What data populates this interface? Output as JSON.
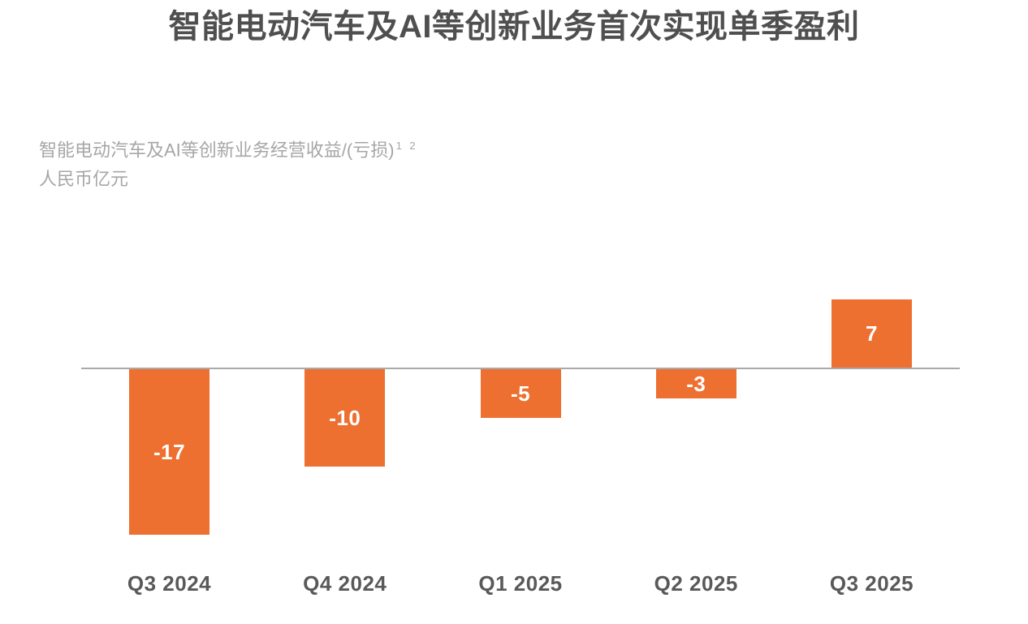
{
  "title": "智能电动汽车及AI等创新业务首次实现单季盈利",
  "subtitle": {
    "line1": "智能电动汽车及AI等创新业务经营收益/(亏损)",
    "superscript": "1 2",
    "line2": "人民币亿元"
  },
  "colors": {
    "bar": "#ed7031",
    "bar_label": "#ffffff",
    "axis_line": "#a9a9a9",
    "title_text": "#4f4f4f",
    "subtitle_text": "#a6a6a6",
    "x_label_text": "#595959",
    "background": "#ffffff"
  },
  "chart_data": {
    "type": "bar",
    "categories": [
      "Q3 2024",
      "Q4 2024",
      "Q1 2025",
      "Q2 2025",
      "Q3 2025"
    ],
    "values": [
      -17,
      -10,
      -5,
      -3,
      7
    ],
    "data_labels": [
      "-17",
      "-10",
      "-5",
      "-3",
      "7"
    ],
    "title": "智能电动汽车及AI等创新业务首次实现单季盈利",
    "xlabel": "",
    "ylabel": "智能电动汽车及AI等创新业务经营收益/(亏损)，人民币亿元",
    "ylim": [
      -18,
      8
    ],
    "baseline": 0,
    "grid": false,
    "legend": false,
    "bar_color": "#ed7031",
    "label_position": "inside-center"
  }
}
